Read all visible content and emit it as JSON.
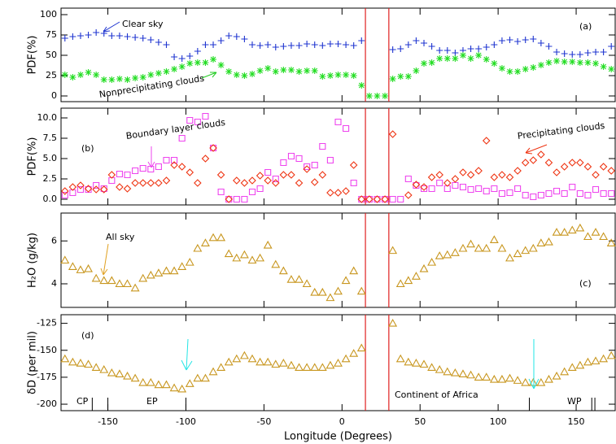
{
  "chart_data": [
    {
      "type": "scatter",
      "panel": "(a)",
      "ylabel": "PDF(%)",
      "xlim": [
        -180,
        175
      ],
      "ylim": [
        -7,
        108
      ],
      "yticks": [
        0,
        25,
        50,
        75,
        100
      ],
      "vlines": [
        15,
        30
      ],
      "x": [
        -177.5,
        -172.5,
        -167.5,
        -162.5,
        -157.5,
        -152.5,
        -147.5,
        -142.5,
        -137.5,
        -132.5,
        -127.5,
        -122.5,
        -117.5,
        -112.5,
        -107.5,
        -102.5,
        -97.5,
        -92.5,
        -87.5,
        -82.5,
        -77.5,
        -72.5,
        -67.5,
        -62.5,
        -57.5,
        -52.5,
        -47.5,
        -42.5,
        -37.5,
        -32.5,
        -27.5,
        -22.5,
        -17.5,
        -12.5,
        -7.5,
        -2.5,
        2.5,
        7.5,
        12.5,
        17.5,
        22.5,
        27.5,
        32.5,
        37.5,
        42.5,
        47.5,
        52.5,
        57.5,
        62.5,
        67.5,
        72.5,
        77.5,
        82.5,
        87.5,
        92.5,
        97.5,
        102.5,
        107.5,
        112.5,
        117.5,
        122.5,
        127.5,
        132.5,
        137.5,
        142.5,
        147.5,
        152.5,
        157.5,
        162.5,
        167.5,
        172.5
      ],
      "series": [
        {
          "name": "Clear sky",
          "color": "#1f35d0",
          "marker": "plus",
          "values": [
            71,
            73,
            74,
            75,
            78,
            77,
            74,
            74,
            73,
            72,
            71,
            69,
            66,
            63,
            48,
            46,
            49,
            55,
            63,
            63,
            68,
            74,
            73,
            70,
            63,
            62,
            63,
            60,
            61,
            62,
            62,
            64,
            63,
            62,
            64,
            64,
            63,
            62,
            68,
            null,
            null,
            null,
            57,
            58,
            63,
            68,
            65,
            61,
            56,
            56,
            53,
            56,
            58,
            58,
            60,
            63,
            68,
            69,
            67,
            69,
            70,
            65,
            61,
            54,
            52,
            51,
            51,
            53,
            54,
            54,
            61
          ]
        },
        {
          "name": "Nonprecipitating clouds",
          "color": "#22dd22",
          "marker": "star",
          "values": [
            26,
            23,
            26,
            29,
            26,
            20,
            20,
            21,
            20,
            22,
            23,
            26,
            28,
            30,
            33,
            36,
            40,
            41,
            41,
            45,
            38,
            30,
            26,
            25,
            27,
            31,
            34,
            30,
            32,
            32,
            30,
            31,
            31,
            24,
            25,
            26,
            26,
            25,
            13,
            0,
            0,
            0,
            21,
            24,
            24,
            31,
            40,
            41,
            46,
            46,
            46,
            50,
            46,
            50,
            45,
            40,
            34,
            30,
            30,
            33,
            35,
            38,
            41,
            43,
            42,
            42,
            41,
            41,
            40,
            36,
            33
          ]
        }
      ],
      "annotations": [
        "Clear sky",
        "(a)",
        "Nonprecipitating clouds"
      ]
    },
    {
      "type": "scatter",
      "panel": "(b)",
      "ylabel": "PDF(%)",
      "xlim": [
        -180,
        175
      ],
      "ylim": [
        -0.7,
        11.2
      ],
      "yticks": [
        {
          "value": 0,
          "label": "0.0"
        },
        2.5,
        {
          "value": 5,
          "label": "5.0"
        },
        7.5,
        {
          "value": 10,
          "label": "10.0"
        }
      ],
      "vlines": [
        15,
        30
      ],
      "x": [
        -177.5,
        -172.5,
        -167.5,
        -162.5,
        -157.5,
        -152.5,
        -147.5,
        -142.5,
        -137.5,
        -132.5,
        -127.5,
        -122.5,
        -117.5,
        -112.5,
        -107.5,
        -102.5,
        -97.5,
        -92.5,
        -87.5,
        -82.5,
        -77.5,
        -72.5,
        -67.5,
        -62.5,
        -57.5,
        -52.5,
        -47.5,
        -42.5,
        -37.5,
        -32.5,
        -27.5,
        -22.5,
        -17.5,
        -12.5,
        -7.5,
        -2.5,
        2.5,
        7.5,
        12.5,
        17.5,
        22.5,
        27.5,
        32.5,
        37.5,
        42.5,
        47.5,
        52.5,
        57.5,
        62.5,
        67.5,
        72.5,
        77.5,
        82.5,
        87.5,
        92.5,
        97.5,
        102.5,
        107.5,
        112.5,
        117.5,
        122.5,
        127.5,
        132.5,
        137.5,
        142.5,
        147.5,
        152.5,
        157.5,
        162.5,
        167.5,
        172.5
      ],
      "series": [
        {
          "name": "Boundary layer clouds",
          "color": "#ee44ee",
          "marker": "square",
          "values": [
            0.5,
            0.8,
            1.2,
            1.2,
            1.7,
            1.3,
            2.3,
            3.1,
            3.0,
            3.5,
            3.8,
            3.7,
            4.0,
            4.8,
            4.8,
            7.5,
            9.7,
            9.5,
            10.2,
            6.3,
            0.9,
            0,
            0,
            0,
            0.9,
            1.3,
            3.3,
            2.5,
            4.5,
            5.3,
            5.0,
            4.0,
            4.2,
            6.5,
            4.8,
            9.5,
            8.7,
            2.0,
            0,
            0,
            0,
            0,
            0,
            0,
            2.5,
            1.7,
            1.3,
            1.3,
            2.0,
            1.3,
            1.7,
            1.5,
            1.2,
            1.3,
            1.0,
            1.3,
            0.7,
            0.8,
            1.3,
            0.5,
            0.3,
            0.5,
            0.7,
            1.0,
            0.7,
            1.5,
            0.7,
            0.5,
            1.2,
            0.7,
            0.7
          ]
        },
        {
          "name": "Precipitating clouds",
          "color": "#ee3311",
          "marker": "diamond",
          "values": [
            1.0,
            1.5,
            1.7,
            1.3,
            1.2,
            1.2,
            3.0,
            1.5,
            1.3,
            2.0,
            2.0,
            2.0,
            2.0,
            2.3,
            4.2,
            4.0,
            3.3,
            2.0,
            5.0,
            6.3,
            3.0,
            0,
            2.3,
            2.0,
            2.3,
            2.9,
            2.3,
            2.0,
            3.0,
            3.0,
            2.0,
            3.7,
            2.1,
            3.0,
            0.8,
            0.8,
            1.0,
            4.2,
            0,
            0,
            0,
            0,
            8.0,
            null,
            0.5,
            1.8,
            1.5,
            2.7,
            3.0,
            2.0,
            2.5,
            3.3,
            3.0,
            3.5,
            7.2,
            2.7,
            3.0,
            2.7,
            3.5,
            4.5,
            4.8,
            5.5,
            4.5,
            3.3,
            4.0,
            4.5,
            4.5,
            4.0,
            3.0,
            4.0,
            3.5
          ]
        }
      ],
      "annotations": [
        "(b)",
        "Boundary layer clouds",
        "Precipitating clouds"
      ]
    },
    {
      "type": "scatter",
      "panel": "(c)",
      "ylabel": "H₂O (g/kg)",
      "xlim": [
        -180,
        175
      ],
      "ylim": [
        2.9,
        7.3
      ],
      "yticks": [
        4,
        6
      ],
      "vlines": [
        15,
        30
      ],
      "x": [
        -177.5,
        -172.5,
        -167.5,
        -162.5,
        -157.5,
        -152.5,
        -147.5,
        -142.5,
        -137.5,
        -132.5,
        -127.5,
        -122.5,
        -117.5,
        -112.5,
        -107.5,
        -102.5,
        -97.5,
        -92.5,
        -87.5,
        -82.5,
        -77.5,
        -72.5,
        -67.5,
        -62.5,
        -57.5,
        -52.5,
        -47.5,
        -42.5,
        -37.5,
        -32.5,
        -27.5,
        -22.5,
        -17.5,
        -12.5,
        -7.5,
        -2.5,
        2.5,
        7.5,
        12.5,
        17.5,
        22.5,
        27.5,
        32.5,
        37.5,
        42.5,
        47.5,
        52.5,
        57.5,
        62.5,
        67.5,
        72.5,
        77.5,
        82.5,
        87.5,
        92.5,
        97.5,
        102.5,
        107.5,
        112.5,
        117.5,
        122.5,
        127.5,
        132.5,
        137.5,
        142.5,
        147.5,
        152.5,
        157.5,
        162.5,
        167.5,
        172.5
      ],
      "series": [
        {
          "name": "All sky",
          "color": "#c8961e",
          "marker": "triangle",
          "values": [
            5.1,
            4.8,
            4.65,
            4.7,
            4.25,
            4.15,
            4.15,
            4.0,
            4.0,
            3.8,
            4.25,
            4.4,
            4.5,
            4.6,
            4.6,
            4.8,
            5.0,
            5.65,
            5.9,
            6.15,
            6.15,
            5.4,
            5.2,
            5.35,
            5.1,
            5.2,
            5.8,
            4.9,
            4.6,
            4.2,
            4.2,
            4.0,
            3.6,
            3.6,
            3.35,
            3.65,
            4.15,
            4.6,
            3.65,
            null,
            null,
            null,
            5.55,
            4.0,
            4.15,
            4.35,
            4.7,
            5.0,
            5.3,
            5.35,
            5.45,
            5.65,
            5.85,
            5.65,
            5.65,
            6.05,
            5.65,
            5.2,
            5.4,
            5.55,
            5.65,
            5.9,
            5.95,
            6.4,
            6.4,
            6.5,
            6.6,
            6.2,
            6.4,
            6.2,
            5.9
          ]
        }
      ],
      "annotations": [
        "All sky",
        "(c)"
      ]
    },
    {
      "type": "scatter",
      "panel": "(d)",
      "ylabel": "δD (per mil)",
      "xlabel": "Longitude (Degrees)",
      "xlim": [
        -180,
        175
      ],
      "ylim": [
        -206,
        -117
      ],
      "yticks": [
        -200,
        -175,
        -150,
        -125
      ],
      "xticks": [
        -150,
        -100,
        -50,
        0,
        50,
        100,
        150
      ],
      "vlines": [
        15,
        30
      ],
      "markers": [
        -160,
        -150,
        -100,
        120,
        160,
        162
      ],
      "x": [
        -177.5,
        -172.5,
        -167.5,
        -162.5,
        -157.5,
        -152.5,
        -147.5,
        -142.5,
        -137.5,
        -132.5,
        -127.5,
        -122.5,
        -117.5,
        -112.5,
        -107.5,
        -102.5,
        -97.5,
        -92.5,
        -87.5,
        -82.5,
        -77.5,
        -72.5,
        -67.5,
        -62.5,
        -57.5,
        -52.5,
        -47.5,
        -42.5,
        -37.5,
        -32.5,
        -27.5,
        -22.5,
        -17.5,
        -12.5,
        -7.5,
        -2.5,
        2.5,
        7.5,
        12.5,
        17.5,
        22.5,
        27.5,
        32.5,
        37.5,
        42.5,
        47.5,
        52.5,
        57.5,
        62.5,
        67.5,
        72.5,
        77.5,
        82.5,
        87.5,
        92.5,
        97.5,
        102.5,
        107.5,
        112.5,
        117.5,
        122.5,
        127.5,
        132.5,
        137.5,
        142.5,
        147.5,
        152.5,
        157.5,
        162.5,
        167.5,
        172.5
      ],
      "series": [
        {
          "name": "δD",
          "color": "#c8961e",
          "marker": "triangle",
          "values": [
            -158,
            -161,
            -162,
            -163,
            -166,
            -168,
            -171,
            -172,
            -174,
            -176,
            -180,
            -180,
            -182,
            -182,
            -185,
            -186,
            -181,
            -176,
            -176,
            -170,
            -166,
            -161,
            -158,
            -155,
            -158,
            -161,
            -161,
            -163,
            -162,
            -164,
            -166,
            -166,
            -166,
            -166,
            -164,
            -162,
            -158,
            -153,
            -148,
            null,
            null,
            null,
            -125,
            -158,
            -161,
            -162,
            -163,
            -166,
            -168,
            -170,
            -171,
            -172,
            -173,
            -175,
            -175,
            -177,
            -177,
            -176,
            -178,
            -180,
            -180,
            -180,
            -177,
            -174,
            -170,
            -166,
            -164,
            -161,
            -160,
            -158,
            -155
          ]
        }
      ],
      "annotations": [
        "(d)",
        "CP",
        "EP",
        "Continent of Africa",
        "WP"
      ]
    }
  ]
}
